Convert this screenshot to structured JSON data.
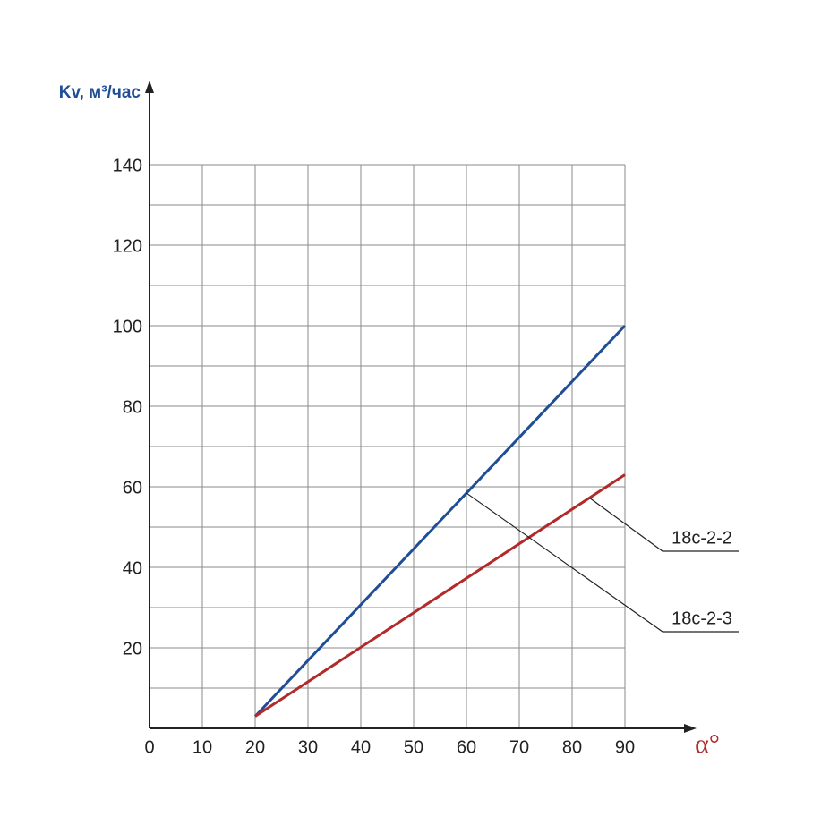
{
  "chart_data": {
    "type": "line",
    "y_label": "Kv, м³/час",
    "x_label": "α°",
    "xlim": [
      0,
      90
    ],
    "ylim": [
      0,
      140
    ],
    "xticks": [
      0,
      10,
      20,
      30,
      40,
      50,
      60,
      70,
      80,
      90
    ],
    "yticks": [
      20,
      40,
      60,
      80,
      100,
      120,
      140
    ],
    "y_minor_ticks": [
      10,
      30,
      50,
      70,
      90,
      110,
      130
    ],
    "grid": true,
    "x": [
      20,
      90
    ],
    "series": [
      {
        "name": "18с-2-3",
        "color": "#1f4e96",
        "values": [
          3,
          100
        ]
      },
      {
        "name": "18с-2-2",
        "color": "#b22a2a",
        "values": [
          3,
          63
        ]
      }
    ]
  }
}
